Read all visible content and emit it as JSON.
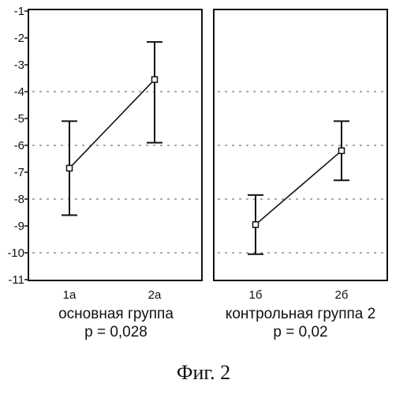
{
  "chart_data": [
    {
      "type": "line",
      "categories": [
        "1а",
        "2а"
      ],
      "series": [
        {
          "values": [
            -6.85,
            -3.55
          ],
          "err_low": [
            -8.6,
            -5.9
          ],
          "err_high": [
            -5.1,
            -2.15
          ]
        }
      ],
      "ylim": [
        -11,
        -1
      ],
      "yticks": [
        "-1",
        "-2",
        "-3",
        "-4",
        "-5",
        "-6",
        "-7",
        "-8",
        "-9",
        "-10",
        "-11"
      ],
      "reference_lines": [
        -4,
        -6,
        -8,
        -10
      ],
      "group_label": "основная группа",
      "p_value": "p = 0,028",
      "grid": false
    },
    {
      "type": "line",
      "categories": [
        "1б",
        "2б"
      ],
      "series": [
        {
          "values": [
            -8.95,
            -6.2
          ],
          "err_low": [
            -10.05,
            -7.3
          ],
          "err_high": [
            -7.85,
            -5.1
          ]
        }
      ],
      "ylim": [
        -11,
        -1
      ],
      "reference_lines": [
        -4,
        -6,
        -8,
        -10
      ],
      "group_label": "контрольная группа 2",
      "p_value": "p = 0,02",
      "grid": false
    }
  ],
  "figure": {
    "caption": "Фиг. 2",
    "line_color": "#111111",
    "ref_line_color": "#777777"
  }
}
